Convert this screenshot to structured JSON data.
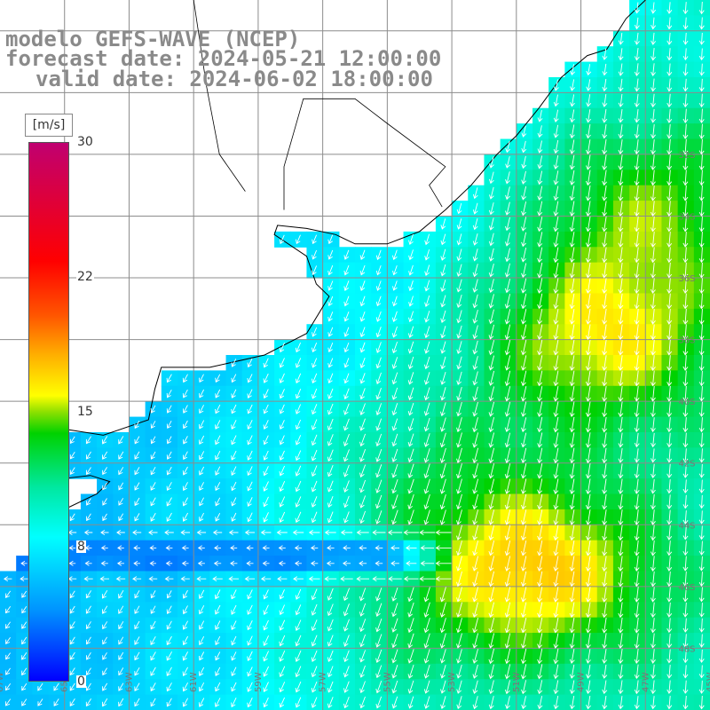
{
  "title": {
    "line1": "modelo GEFS-WAVE (NCEP)",
    "line2": "forecast date: 2024-05-21 12:00:00",
    "line3": "valid date: 2024-06-02 18:00:00"
  },
  "legend": {
    "units": "[m/s]",
    "ticks": [
      {
        "value": 30,
        "label": "30"
      },
      {
        "value": 22,
        "label": "22"
      },
      {
        "value": 15,
        "label": "15"
      },
      {
        "value": 8,
        "label": "8"
      },
      {
        "value": 0,
        "label": "0"
      }
    ],
    "color_stops": [
      {
        "value": 0,
        "color": "#0000ff"
      },
      {
        "value": 4,
        "color": "#0095ff"
      },
      {
        "value": 8,
        "color": "#00ffff"
      },
      {
        "value": 11,
        "color": "#00e8a0"
      },
      {
        "value": 14,
        "color": "#00d200"
      },
      {
        "value": 15,
        "color": "#8ee000"
      },
      {
        "value": 16,
        "color": "#ffff00"
      },
      {
        "value": 18,
        "color": "#ffaa00"
      },
      {
        "value": 20,
        "color": "#ff5500"
      },
      {
        "value": 22,
        "color": "#ff0000"
      },
      {
        "value": 30,
        "color": "#c00070"
      }
    ]
  },
  "map": {
    "region": "South Atlantic off southern Brazil, Uruguay and Argentina",
    "lon_range": [
      -67,
      -45
    ],
    "lat_range": [
      -50,
      -27
    ],
    "grid_step_deg": 2,
    "lat_labels": [
      {
        "lat": -32,
        "label": "32S"
      },
      {
        "lat": -34,
        "label": "34S"
      },
      {
        "lat": -36,
        "label": "36S"
      },
      {
        "lat": -38,
        "label": "38S"
      },
      {
        "lat": -40,
        "label": "40S"
      },
      {
        "lat": -42,
        "label": "42S"
      },
      {
        "lat": -44,
        "label": "44S"
      },
      {
        "lat": -46,
        "label": "46S"
      },
      {
        "lat": -48,
        "label": "48S"
      }
    ],
    "lon_labels": [
      {
        "lon": -67,
        "label": "67W"
      },
      {
        "lon": -65,
        "label": "65W"
      },
      {
        "lon": -63,
        "label": "63W"
      },
      {
        "lon": -61,
        "label": "61W"
      },
      {
        "lon": -59,
        "label": "59W"
      },
      {
        "lon": -57,
        "label": "57W"
      },
      {
        "lon": -55,
        "label": "55W"
      },
      {
        "lon": -53,
        "label": "53W"
      },
      {
        "lon": -51,
        "label": "51W"
      },
      {
        "lon": -49,
        "label": "49W"
      },
      {
        "lon": -47,
        "label": "47W"
      },
      {
        "lon": -45,
        "label": "45W"
      }
    ],
    "wind_field_centers": [
      {
        "lon": -48.5,
        "lat": -38.0,
        "speed": 14
      },
      {
        "lon": -50.5,
        "lat": -45.5,
        "speed": 15
      },
      {
        "lon": -47.0,
        "lat": -33.5,
        "speed": 12
      },
      {
        "lon": -54.0,
        "lat": -42.0,
        "speed": 10
      },
      {
        "lon": -55.0,
        "lat": -48.0,
        "speed": 9
      }
    ],
    "calm_band": {
      "lat": -45.0,
      "lon_from": -67,
      "lon_to": -53,
      "speed": 3
    }
  }
}
